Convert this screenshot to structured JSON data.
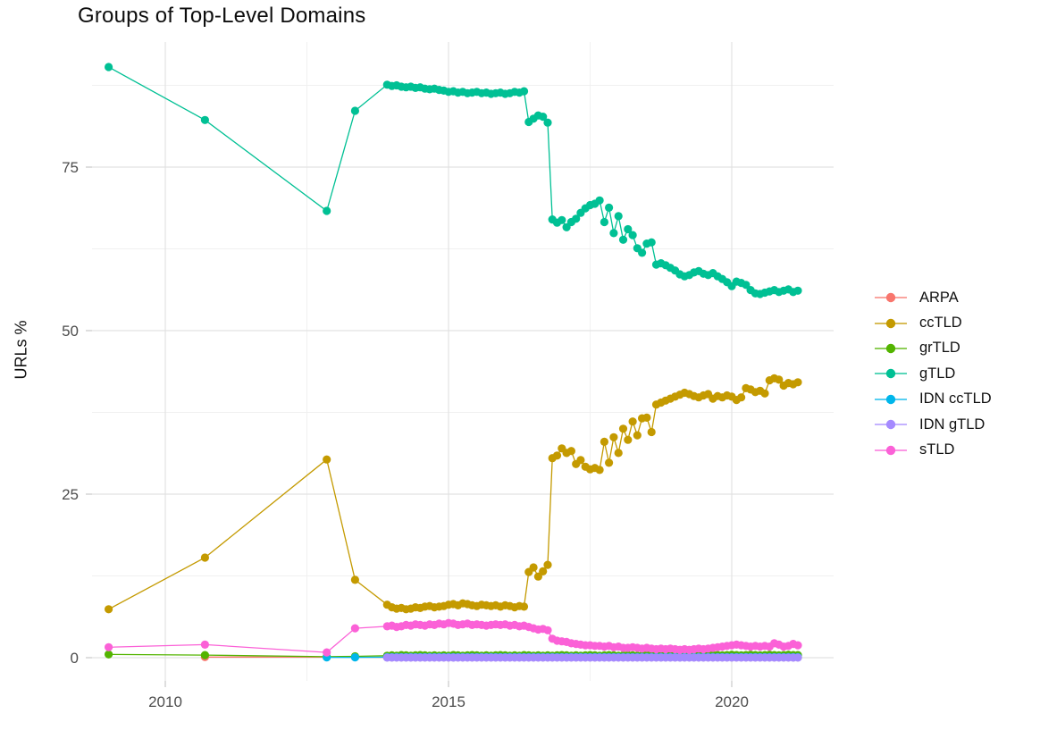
{
  "title": "Groups of Top-Level Domains",
  "axes": {
    "y_label": "URLs %",
    "y_ticks": [
      0,
      25,
      50,
      75
    ],
    "y_minor": [
      12.5,
      37.5,
      62.5,
      87.5
    ],
    "x_ticks": [
      2010,
      2015,
      2020
    ],
    "x_minor": [
      2012.5,
      2017.5
    ]
  },
  "legend": {
    "items": [
      {
        "label": "ARPA",
        "color": "#F8766D"
      },
      {
        "label": "ccTLD",
        "color": "#C49A00"
      },
      {
        "label": "grTLD",
        "color": "#53B400"
      },
      {
        "label": "gTLD",
        "color": "#00C094"
      },
      {
        "label": "IDN ccTLD",
        "color": "#00B6EB"
      },
      {
        "label": "IDN gTLD",
        "color": "#A58AFF"
      },
      {
        "label": "sTLD",
        "color": "#FB61D7"
      }
    ]
  },
  "chart_data": {
    "type": "line",
    "title": "Groups of Top-Level Domains",
    "xlabel": "",
    "ylabel": "URLs %",
    "xlim": [
      2008.7,
      2021.8
    ],
    "ylim": [
      -3.6,
      94.5
    ],
    "grid": true,
    "legend_position": "right",
    "point_radius": 4.6,
    "line_width": 1.3,
    "series": [
      {
        "name": "ARPA",
        "color": "#F8766D",
        "early": [
          [
            2010.7,
            0.1
          ],
          [
            2012.85,
            0.1
          ],
          [
            2013.35,
            0.08
          ]
        ],
        "start": 2013.917,
        "step": 0.08333,
        "values": [
          0.05,
          0.05,
          0.05,
          0.05,
          0.05,
          0.05,
          0.05,
          0.05,
          0.05,
          0.05,
          0.05,
          0.05,
          0.05,
          0.05,
          0.05,
          0.05,
          0.05,
          0.05,
          0.05,
          0.05,
          0.05,
          0.05,
          0.05,
          0.05,
          0.05,
          0.05,
          0.05,
          0.05,
          0.05,
          0.05,
          0.05,
          0.05,
          0.05,
          0.05,
          0.05,
          0.05,
          0.05,
          0.05,
          0.05,
          0.05,
          0.05,
          0.05,
          0.05,
          0.05,
          0.05,
          0.05,
          0.05,
          0.05,
          0.05,
          0.05,
          0.05,
          0.05,
          0.05,
          0.05,
          0.05,
          0.05,
          0.05,
          0.05,
          0.05,
          0.05,
          0.05,
          0.05,
          0.05,
          0.05,
          0.05,
          0.05,
          0.05,
          0.05,
          0.05,
          0.05,
          0.05,
          0.05,
          0.05,
          0.05,
          0.05,
          0.05,
          0.05,
          0.05,
          0.05,
          0.05,
          0.05,
          0.05,
          0.05,
          0.05,
          0.05,
          0.05,
          0.05,
          0.05
        ]
      },
      {
        "name": "ccTLD",
        "color": "#C49A00",
        "early": [
          [
            2009.0,
            7.4
          ],
          [
            2010.7,
            15.3
          ],
          [
            2012.85,
            30.3
          ],
          [
            2013.35,
            11.9
          ]
        ],
        "start": 2013.917,
        "step": 0.08333,
        "values": [
          8.1,
          7.7,
          7.5,
          7.6,
          7.4,
          7.5,
          7.7,
          7.6,
          7.8,
          7.9,
          7.7,
          7.8,
          7.9,
          8.1,
          8.2,
          8.0,
          8.3,
          8.2,
          8.0,
          7.9,
          8.1,
          8.0,
          7.9,
          8.0,
          7.8,
          8.0,
          7.9,
          7.7,
          7.9,
          7.8,
          13.1,
          13.8,
          12.4,
          13.2,
          14.2,
          30.5,
          30.9,
          32.0,
          31.3,
          31.6,
          29.6,
          30.2,
          29.2,
          28.8,
          29.0,
          28.7,
          33.0,
          29.8,
          33.7,
          31.3,
          35.0,
          33.3,
          36.1,
          34.0,
          36.6,
          36.7,
          34.5,
          38.7,
          39.0,
          39.3,
          39.6,
          39.9,
          40.2,
          40.5,
          40.3,
          40.0,
          39.8,
          40.1,
          40.3,
          39.6,
          40.0,
          39.8,
          40.1,
          39.9,
          39.4,
          39.8,
          41.2,
          41.0,
          40.6,
          40.8,
          40.4,
          42.4,
          42.7,
          42.5,
          41.6,
          42.0,
          41.8,
          42.1
        ]
      },
      {
        "name": "grTLD",
        "color": "#53B400",
        "early": [
          [
            2009.0,
            0.5
          ],
          [
            2010.7,
            0.4
          ],
          [
            2012.85,
            0.15
          ],
          [
            2013.35,
            0.2
          ]
        ],
        "start": 2013.917,
        "step": 0.08333,
        "values": [
          0.3,
          0.35,
          0.3,
          0.4,
          0.35,
          0.3,
          0.35,
          0.4,
          0.35,
          0.3,
          0.35,
          0.3,
          0.35,
          0.3,
          0.4,
          0.35,
          0.3,
          0.35,
          0.4,
          0.35,
          0.3,
          0.35,
          0.3,
          0.35,
          0.4,
          0.35,
          0.3,
          0.35,
          0.3,
          0.4,
          0.35,
          0.3,
          0.35,
          0.3,
          0.35,
          0.3,
          0.35,
          0.4,
          0.35,
          0.3,
          0.35,
          0.3,
          0.35,
          0.4,
          0.35,
          0.3,
          0.35,
          0.4,
          0.35,
          0.3,
          0.35,
          0.4,
          0.35,
          0.3,
          0.35,
          0.4,
          0.35,
          0.3,
          0.35,
          0.4,
          0.35,
          0.3,
          0.35,
          0.4,
          0.35,
          0.3,
          0.35,
          0.4,
          0.35,
          0.45,
          0.4,
          0.35,
          0.4,
          0.45,
          0.4,
          0.35,
          0.4,
          0.45,
          0.4,
          0.35,
          0.4,
          0.45,
          0.4,
          0.35,
          0.4,
          0.45,
          0.4,
          0.4
        ]
      },
      {
        "name": "gTLD",
        "color": "#00C094",
        "early": [
          [
            2009.0,
            90.3
          ],
          [
            2010.7,
            82.2
          ],
          [
            2012.85,
            68.3
          ],
          [
            2013.35,
            83.6
          ]
        ],
        "start": 2013.917,
        "step": 0.08333,
        "values": [
          87.6,
          87.4,
          87.5,
          87.3,
          87.2,
          87.3,
          87.1,
          87.2,
          87.0,
          86.9,
          87.0,
          86.8,
          86.7,
          86.5,
          86.6,
          86.4,
          86.5,
          86.3,
          86.4,
          86.5,
          86.3,
          86.4,
          86.2,
          86.3,
          86.4,
          86.2,
          86.3,
          86.5,
          86.4,
          86.6,
          81.9,
          82.4,
          82.9,
          82.7,
          81.8,
          67.0,
          66.5,
          66.9,
          65.8,
          66.6,
          67.1,
          68.0,
          68.7,
          69.2,
          69.4,
          69.9,
          66.6,
          68.8,
          64.9,
          67.5,
          63.9,
          65.5,
          64.6,
          62.6,
          61.9,
          63.3,
          63.5,
          60.1,
          60.3,
          60.0,
          59.6,
          59.2,
          58.6,
          58.3,
          58.5,
          58.9,
          59.1,
          58.7,
          58.5,
          58.8,
          58.3,
          57.9,
          57.4,
          56.8,
          57.5,
          57.3,
          57.0,
          56.2,
          55.7,
          55.6,
          55.8,
          56.0,
          56.2,
          55.9,
          56.1,
          56.3,
          55.9,
          56.1
        ]
      },
      {
        "name": "IDN ccTLD",
        "color": "#00B6EB",
        "early": [
          [
            2012.85,
            0.05
          ],
          [
            2013.35,
            0.05
          ]
        ],
        "start": 2013.917,
        "step": 0.08333,
        "values": [
          0.08,
          0.08,
          0.08,
          0.08,
          0.08,
          0.08,
          0.08,
          0.08,
          0.08,
          0.08,
          0.08,
          0.08,
          0.08,
          0.08,
          0.08,
          0.08,
          0.08,
          0.08,
          0.08,
          0.08,
          0.08,
          0.08,
          0.08,
          0.08,
          0.08,
          0.08,
          0.08,
          0.08,
          0.08,
          0.08,
          0.08,
          0.08,
          0.08,
          0.08,
          0.08,
          0.08,
          0.08,
          0.08,
          0.08,
          0.08,
          0.08,
          0.08,
          0.08,
          0.08,
          0.08,
          0.08,
          0.08,
          0.08,
          0.08,
          0.08,
          0.08,
          0.08,
          0.08,
          0.08,
          0.08,
          0.08,
          0.08,
          0.08,
          0.08,
          0.08,
          0.08,
          0.08,
          0.08,
          0.08,
          0.08,
          0.08,
          0.08,
          0.08,
          0.08,
          0.08,
          0.08,
          0.08,
          0.08,
          0.08,
          0.08,
          0.08,
          0.08,
          0.08,
          0.08,
          0.08,
          0.08,
          0.08,
          0.08,
          0.08,
          0.08,
          0.08,
          0.08,
          0.08
        ]
      },
      {
        "name": "IDN gTLD",
        "color": "#A58AFF",
        "early": [],
        "start": 2013.917,
        "step": 0.08333,
        "values": [
          0.02,
          0.02,
          0.02,
          0.02,
          0.02,
          0.02,
          0.02,
          0.02,
          0.02,
          0.02,
          0.02,
          0.02,
          0.02,
          0.02,
          0.02,
          0.02,
          0.02,
          0.02,
          0.02,
          0.02,
          0.02,
          0.02,
          0.02,
          0.02,
          0.02,
          0.02,
          0.02,
          0.02,
          0.02,
          0.02,
          0.02,
          0.02,
          0.02,
          0.02,
          0.02,
          0.02,
          0.02,
          0.02,
          0.02,
          0.02,
          0.02,
          0.02,
          0.02,
          0.02,
          0.02,
          0.02,
          0.02,
          0.02,
          0.02,
          0.02,
          0.02,
          0.02,
          0.02,
          0.02,
          0.02,
          0.02,
          0.02,
          0.02,
          0.02,
          0.02,
          0.02,
          0.02,
          0.02,
          0.02,
          0.02,
          0.02,
          0.02,
          0.02,
          0.02,
          0.02,
          0.02,
          0.02,
          0.02,
          0.02,
          0.02,
          0.02,
          0.02,
          0.02,
          0.02,
          0.02,
          0.02,
          0.02,
          0.02,
          0.02,
          0.02,
          0.02,
          0.02,
          0.02
        ]
      },
      {
        "name": "sTLD",
        "color": "#FB61D7",
        "early": [
          [
            2009.0,
            1.6
          ],
          [
            2010.7,
            2.0
          ],
          [
            2012.85,
            0.8
          ],
          [
            2013.35,
            4.5
          ]
        ],
        "start": 2013.917,
        "step": 0.08333,
        "values": [
          4.8,
          4.9,
          4.7,
          4.8,
          5.0,
          4.9,
          5.1,
          5.0,
          4.9,
          5.1,
          5.0,
          5.2,
          5.1,
          5.3,
          5.2,
          5.0,
          5.1,
          5.2,
          5.0,
          5.1,
          5.0,
          4.9,
          5.0,
          5.1,
          5.0,
          5.1,
          4.9,
          5.0,
          4.8,
          4.9,
          4.7,
          4.5,
          4.3,
          4.4,
          4.2,
          2.9,
          2.6,
          2.5,
          2.4,
          2.2,
          2.1,
          2.0,
          1.9,
          1.9,
          1.8,
          1.8,
          1.7,
          1.8,
          1.6,
          1.7,
          1.5,
          1.5,
          1.6,
          1.5,
          1.4,
          1.5,
          1.4,
          1.3,
          1.4,
          1.3,
          1.4,
          1.3,
          1.2,
          1.3,
          1.2,
          1.3,
          1.4,
          1.3,
          1.4,
          1.5,
          1.6,
          1.7,
          1.8,
          1.9,
          2.0,
          1.9,
          1.8,
          1.7,
          1.8,
          1.7,
          1.8,
          1.7,
          2.2,
          2.0,
          1.7,
          1.8,
          2.1,
          1.9
        ]
      }
    ]
  }
}
